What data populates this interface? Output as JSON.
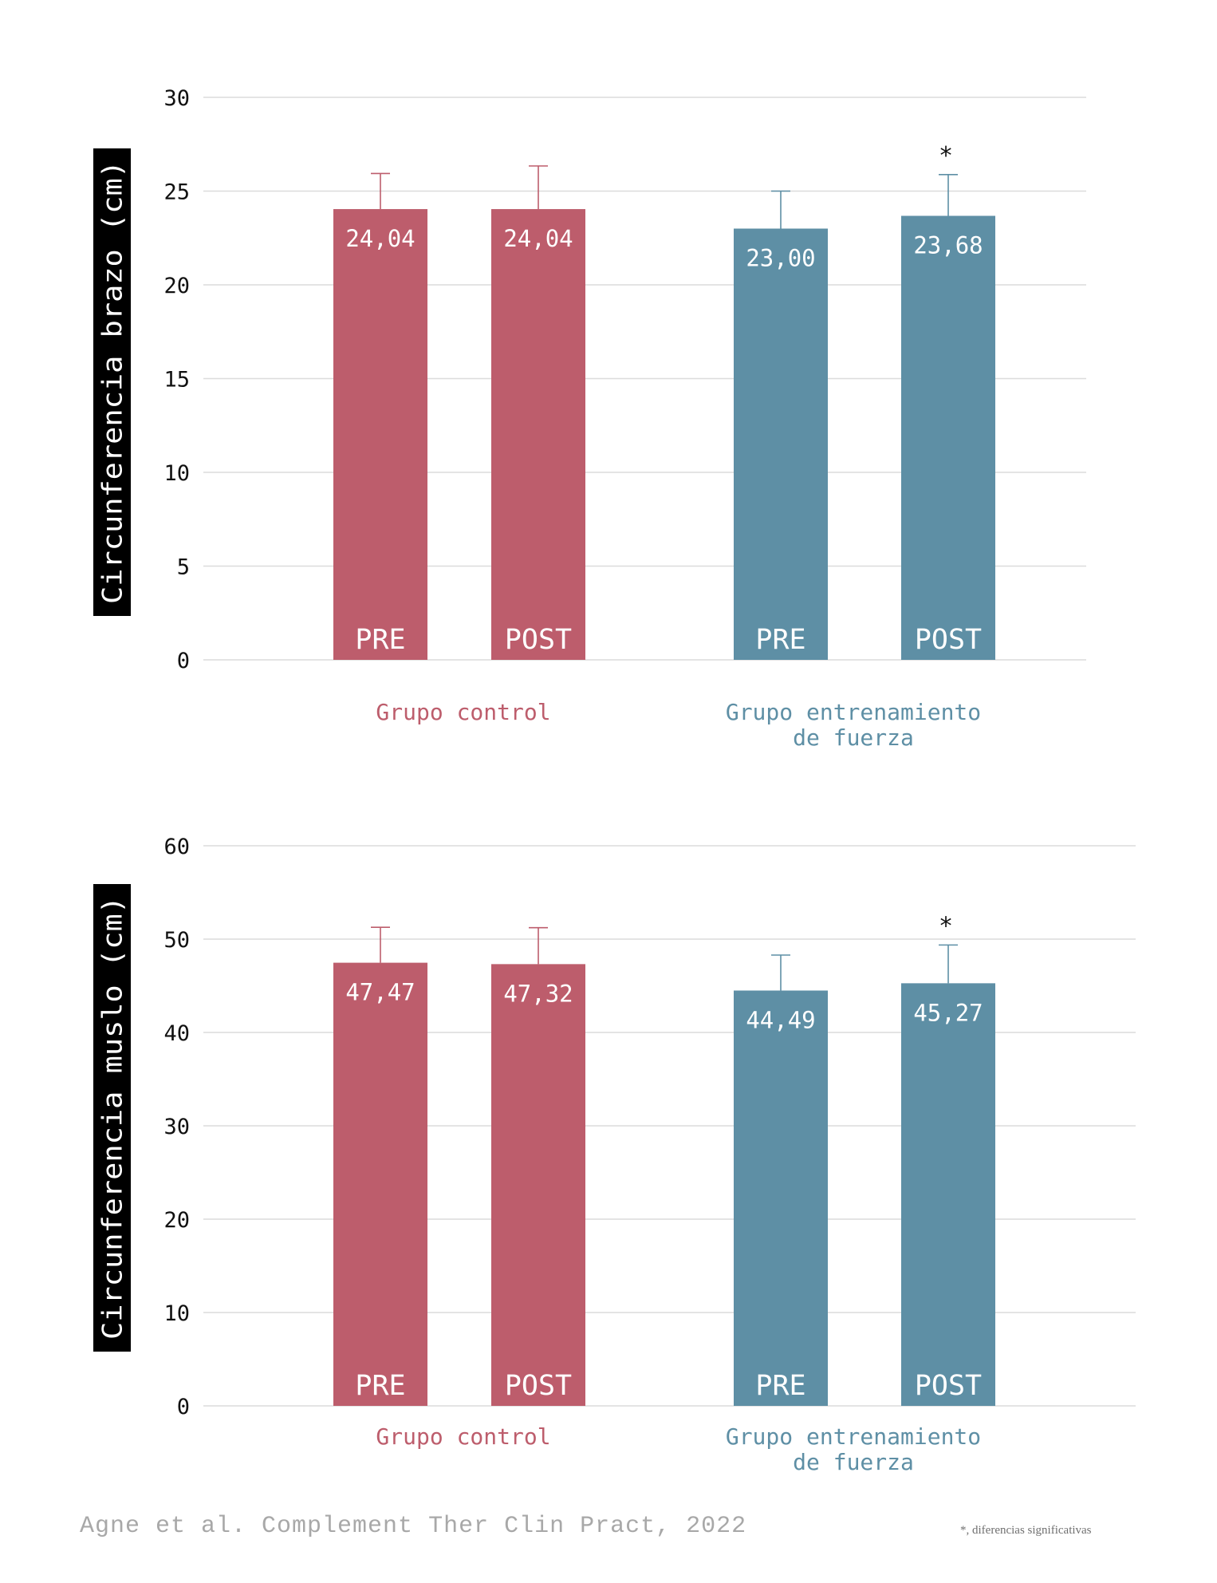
{
  "colors": {
    "control": "#bd5d6c",
    "strength": "#5e8fa5",
    "grid": "#dcdcdc",
    "text": "#111111",
    "label_box": "#000000"
  },
  "chart_data": [
    {
      "type": "bar",
      "ylabel": "Circunferencia brazo (cm)",
      "ylim": [
        0,
        30
      ],
      "yticks": [
        "0",
        "5",
        "10",
        "15",
        "20",
        "25",
        "30"
      ],
      "groups": [
        {
          "name": "Grupo control",
          "name_lines": [
            "Grupo control"
          ],
          "color_key": "control",
          "bars": [
            {
              "label": "PRE",
              "value": 24.04,
              "value_label": "24,04",
              "error": 1.9,
              "sig": ""
            },
            {
              "label": "POST",
              "value": 24.04,
              "value_label": "24,04",
              "error": 2.3,
              "sig": ""
            }
          ]
        },
        {
          "name": "Grupo entrenamiento de fuerza",
          "name_lines": [
            "Grupo entrenamiento",
            "de fuerza"
          ],
          "color_key": "strength",
          "bars": [
            {
              "label": "PRE",
              "value": 23.0,
              "value_label": "23,00",
              "error": 2.0,
              "sig": ""
            },
            {
              "label": "POST",
              "value": 23.68,
              "value_label": "23,68",
              "error": 2.2,
              "sig": "*"
            }
          ]
        }
      ]
    },
    {
      "type": "bar",
      "ylabel": "Circunferencia muslo (cm)",
      "ylim": [
        0,
        60
      ],
      "yticks": [
        "0",
        "10",
        "20",
        "30",
        "40",
        "50",
        "60"
      ],
      "groups": [
        {
          "name": "Grupo control",
          "name_lines": [
            "Grupo control"
          ],
          "color_key": "control",
          "bars": [
            {
              "label": "PRE",
              "value": 47.47,
              "value_label": "47,47",
              "error": 3.8,
              "sig": ""
            },
            {
              "label": "POST",
              "value": 47.32,
              "value_label": "47,32",
              "error": 3.9,
              "sig": ""
            }
          ]
        },
        {
          "name": "Grupo entrenamiento de fuerza",
          "name_lines": [
            "Grupo entrenamiento",
            "de fuerza"
          ],
          "color_key": "strength",
          "bars": [
            {
              "label": "PRE",
              "value": 44.49,
              "value_label": "44,49",
              "error": 3.8,
              "sig": ""
            },
            {
              "label": "POST",
              "value": 45.27,
              "value_label": "45,27",
              "error": 4.1,
              "sig": "*"
            }
          ]
        }
      ]
    }
  ],
  "source": "Agne et al. Complement Ther Clin Pract, 2022",
  "footnote": "*, diferencias significativas"
}
